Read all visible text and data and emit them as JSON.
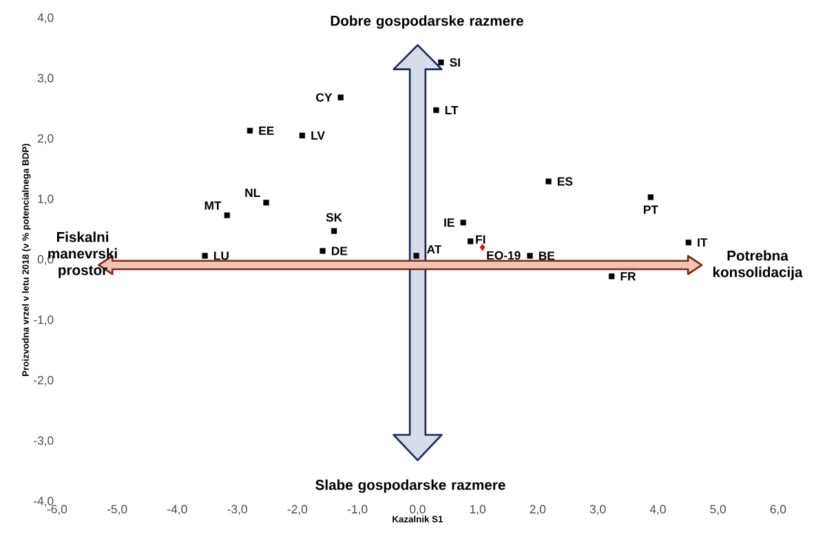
{
  "chart_data": {
    "type": "scatter",
    "xlabel": "Kazalnik S1",
    "ylabel": "Proizvodna vrzel v letu 2018 (v % potencialnega BDP)",
    "xlim": [
      -6,
      6
    ],
    "ylim": [
      -4,
      4
    ],
    "xticks": [
      {
        "value": -6,
        "label": "-6,0"
      },
      {
        "value": -5,
        "label": "-5,0"
      },
      {
        "value": -4,
        "label": "-4,0"
      },
      {
        "value": -3,
        "label": "-3,0"
      },
      {
        "value": -2,
        "label": "-2,0"
      },
      {
        "value": -1,
        "label": "-1,0"
      },
      {
        "value": 0,
        "label": "0,0"
      },
      {
        "value": 1,
        "label": "1,0"
      },
      {
        "value": 2,
        "label": "2,0"
      },
      {
        "value": 3,
        "label": "3,0"
      },
      {
        "value": 4,
        "label": "4,0"
      },
      {
        "value": 5,
        "label": "5,0"
      },
      {
        "value": 6,
        "label": "6,0"
      }
    ],
    "yticks": [
      {
        "value": -4,
        "label": "-4,0"
      },
      {
        "value": -3,
        "label": "-3,0"
      },
      {
        "value": -2,
        "label": "-2,0"
      },
      {
        "value": -1,
        "label": "-1,0"
      },
      {
        "value": 0,
        "label": "0,0"
      },
      {
        "value": 1,
        "label": "1,0"
      },
      {
        "value": 2,
        "label": "2,0"
      },
      {
        "value": 3,
        "label": "3,0"
      },
      {
        "value": 4,
        "label": "4,0"
      }
    ],
    "marker": "square",
    "annotations": [
      "Dobre gospodarske razmere",
      "Slabe gospodarske razmere",
      "Fiskalni manevrski prostor",
      "Potrebna konsolidacija"
    ],
    "series": [
      {
        "name": "SI",
        "color": "#000000",
        "x": [
          0.39
        ],
        "values": [
          3.27
        ]
      },
      {
        "name": "CY",
        "color": "#000000",
        "x": [
          -1.28
        ],
        "values": [
          2.69
        ]
      },
      {
        "name": "LT",
        "color": "#000000",
        "x": [
          0.31
        ],
        "values": [
          2.48
        ]
      },
      {
        "name": "EE",
        "color": "#000000",
        "x": [
          -2.79
        ],
        "values": [
          2.14
        ]
      },
      {
        "name": "LV",
        "color": "#000000",
        "x": [
          -1.92
        ],
        "values": [
          2.06
        ]
      },
      {
        "name": "ES",
        "color": "#000000",
        "x": [
          2.18
        ],
        "values": [
          1.3
        ]
      },
      {
        "name": "PT",
        "color": "#000000",
        "x": [
          3.88
        ],
        "values": [
          1.04
        ]
      },
      {
        "name": "NL",
        "color": "#000000",
        "x": [
          -2.52
        ],
        "values": [
          0.95
        ]
      },
      {
        "name": "MT",
        "color": "#000000",
        "x": [
          -3.17
        ],
        "values": [
          0.74
        ]
      },
      {
        "name": "SK",
        "color": "#000000",
        "x": [
          -1.39
        ],
        "values": [
          0.48
        ]
      },
      {
        "name": "IE",
        "color": "#000000",
        "x": [
          0.76
        ],
        "values": [
          0.62
        ]
      },
      {
        "name": "FI",
        "color": "#000000",
        "x": [
          0.88
        ],
        "values": [
          0.31
        ]
      },
      {
        "name": "EO-19",
        "color": "#ff0000",
        "x": [
          1.08
        ],
        "values": [
          0.21
        ],
        "marker": "diamond"
      },
      {
        "name": "IT",
        "color": "#000000",
        "x": [
          4.51
        ],
        "values": [
          0.29
        ]
      },
      {
        "name": "LU",
        "color": "#000000",
        "x": [
          -3.54
        ],
        "values": [
          0.07
        ]
      },
      {
        "name": "DE",
        "color": "#000000",
        "x": [
          -1.58
        ],
        "values": [
          0.15
        ]
      },
      {
        "name": "AT",
        "color": "#000000",
        "x": [
          -0.02
        ],
        "values": [
          0.07
        ]
      },
      {
        "name": "BE",
        "color": "#000000",
        "x": [
          1.87
        ],
        "values": [
          0.07
        ]
      },
      {
        "name": "FR",
        "color": "#000000",
        "x": [
          3.23
        ],
        "values": [
          -0.27
        ]
      }
    ]
  }
}
